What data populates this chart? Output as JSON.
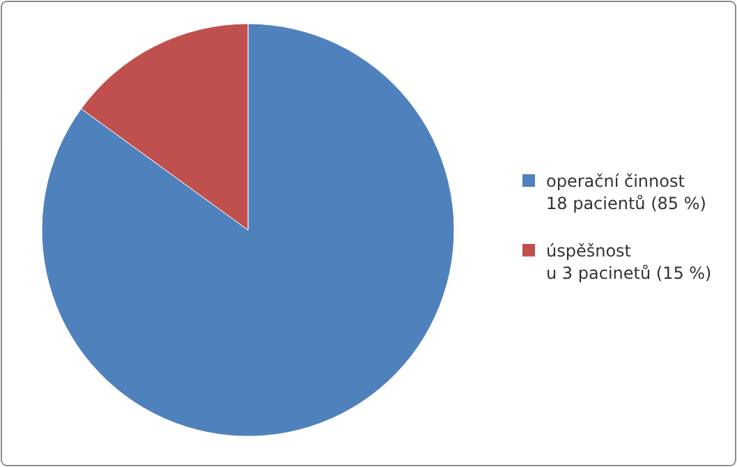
{
  "chart_data": {
    "type": "pie",
    "categories": [
      "operační činnost\n18 pacientů (85 %)",
      "úspěšnost\nu 3 pacinetů (15 %)"
    ],
    "values": [
      85,
      15
    ],
    "colors": [
      "#4f81bd",
      "#c0504d"
    ],
    "legend": "right"
  }
}
